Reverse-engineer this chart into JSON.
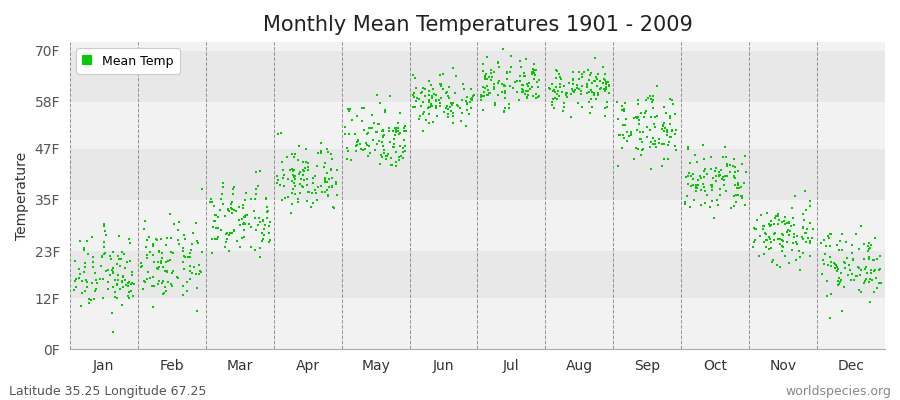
{
  "title": "Monthly Mean Temperatures 1901 - 2009",
  "ylabel": "Temperature",
  "yticks": [
    0,
    12,
    23,
    35,
    47,
    58,
    70
  ],
  "ytick_labels": [
    "0F",
    "12F",
    "23F",
    "35F",
    "47F",
    "58F",
    "70F"
  ],
  "ylim": [
    0,
    72
  ],
  "months": [
    "Jan",
    "Feb",
    "Mar",
    "Apr",
    "May",
    "Jun",
    "Jul",
    "Aug",
    "Sep",
    "Oct",
    "Nov",
    "Dec"
  ],
  "dot_color": "#00cc00",
  "bg_color": "#f2f2f2",
  "bg_alt_color": "#e8e8e8",
  "legend_label": "Mean Temp",
  "footer_left": "Latitude 35.25 Longitude 67.25",
  "footer_right": "worldspecies.org",
  "title_fontsize": 15,
  "axis_fontsize": 10,
  "tick_fontsize": 10,
  "footer_fontsize": 9,
  "monthly_mean_F": [
    17.5,
    20.0,
    30.0,
    40.0,
    50.0,
    58.5,
    62.0,
    61.0,
    52.0,
    39.0,
    27.0,
    20.0
  ],
  "monthly_std_F": [
    4.5,
    4.5,
    4.5,
    4.0,
    4.0,
    3.0,
    2.5,
    2.5,
    4.0,
    4.0,
    4.0,
    4.0
  ],
  "n_years": 109,
  "dot_size": 3
}
